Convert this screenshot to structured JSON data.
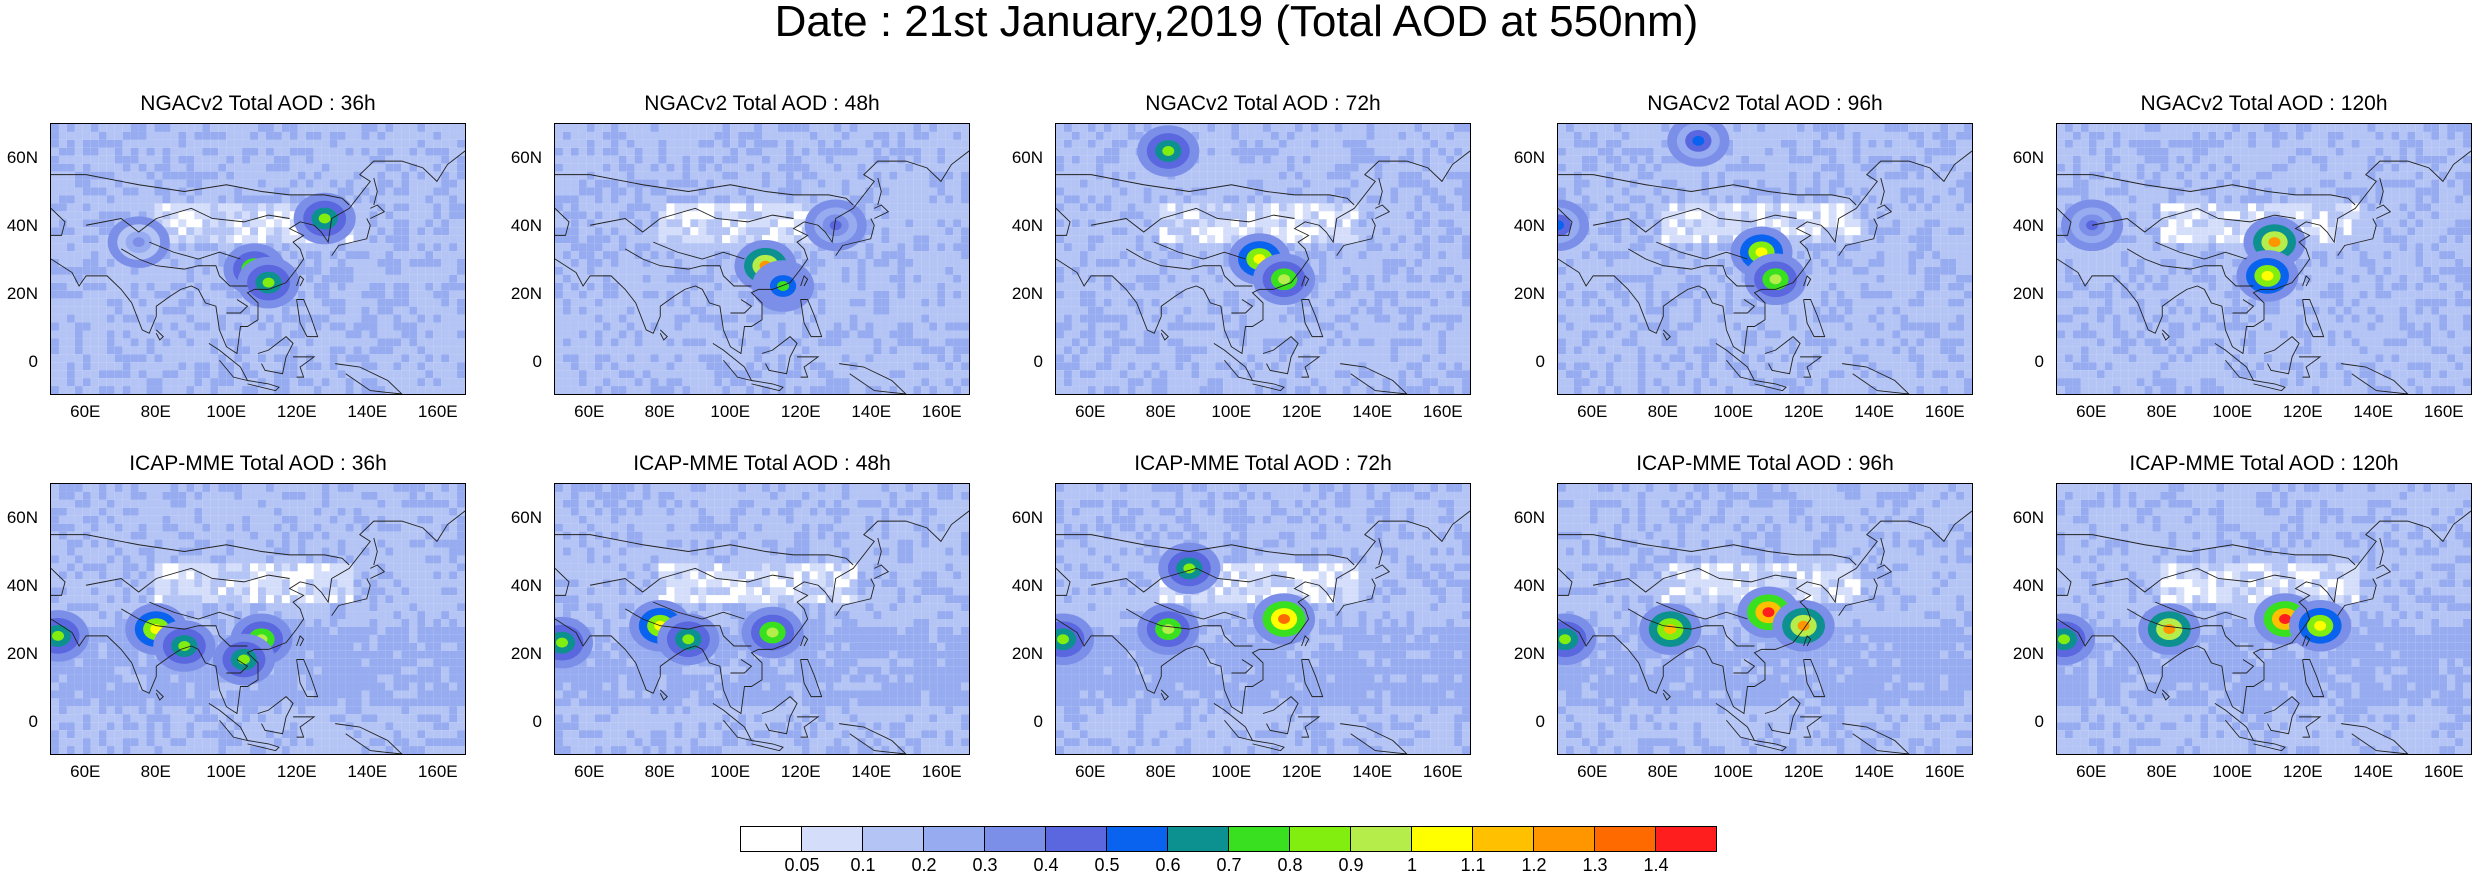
{
  "figure": {
    "title": "Date : 21st January,2019 (Total AOD at 550nm)"
  },
  "map_axes": {
    "lat_labels": [
      "60N",
      "40N",
      "20N",
      "0"
    ],
    "lon_labels": [
      "60E",
      "80E",
      "100E",
      "120E",
      "140E",
      "160E"
    ]
  },
  "panels": [
    {
      "title": "NGACv2 Total AOD : 36h",
      "model": "NGACv2",
      "lead": "36h",
      "hotspots": [
        {
          "lon": 108,
          "lat": 27,
          "level": 0.9
        },
        {
          "lon": 112,
          "lat": 23,
          "level": 0.8
        },
        {
          "lon": 128,
          "lat": 42,
          "level": 0.8
        },
        {
          "lon": 75,
          "lat": 35,
          "level": 0.3
        }
      ]
    },
    {
      "title": "NGACv2 Total AOD : 48h",
      "model": "NGACv2",
      "lead": "48h",
      "hotspots": [
        {
          "lon": 110,
          "lat": 28,
          "level": 1.2
        },
        {
          "lon": 115,
          "lat": 22,
          "level": 0.7
        },
        {
          "lon": 130,
          "lat": 40,
          "level": 0.4
        }
      ]
    },
    {
      "title": "NGACv2 Total AOD : 72h",
      "model": "NGACv2",
      "lead": "72h",
      "hotspots": [
        {
          "lon": 108,
          "lat": 30,
          "level": 1.0
        },
        {
          "lon": 115,
          "lat": 24,
          "level": 0.9
        },
        {
          "lon": 82,
          "lat": 62,
          "level": 0.8
        }
      ]
    },
    {
      "title": "NGACv2 Total AOD : 96h",
      "model": "NGACv2",
      "lead": "96h",
      "hotspots": [
        {
          "lon": 108,
          "lat": 32,
          "level": 1.0
        },
        {
          "lon": 112,
          "lat": 24,
          "level": 0.9
        },
        {
          "lon": 90,
          "lat": 65,
          "level": 0.5
        },
        {
          "lon": 50,
          "lat": 40,
          "level": 0.5
        }
      ]
    },
    {
      "title": "NGACv2 Total AOD : 120h",
      "model": "NGACv2",
      "lead": "120h",
      "hotspots": [
        {
          "lon": 112,
          "lat": 35,
          "level": 1.2
        },
        {
          "lon": 110,
          "lat": 25,
          "level": 1.0
        },
        {
          "lon": 60,
          "lat": 40,
          "level": 0.4
        }
      ]
    },
    {
      "title": "ICAP-MME Total AOD : 36h",
      "model": "ICAP-MME",
      "lead": "36h",
      "hotspots": [
        {
          "lon": 80,
          "lat": 27,
          "level": 1.0
        },
        {
          "lon": 88,
          "lat": 22,
          "level": 0.8
        },
        {
          "lon": 110,
          "lat": 24,
          "level": 0.9
        },
        {
          "lon": 105,
          "lat": 18,
          "level": 0.8
        },
        {
          "lon": 52,
          "lat": 25,
          "level": 0.8
        }
      ]
    },
    {
      "title": "ICAP-MME Total AOD : 48h",
      "model": "ICAP-MME",
      "lead": "48h",
      "hotspots": [
        {
          "lon": 80,
          "lat": 28,
          "level": 1.0
        },
        {
          "lon": 88,
          "lat": 24,
          "level": 0.8
        },
        {
          "lon": 112,
          "lat": 26,
          "level": 0.9
        },
        {
          "lon": 52,
          "lat": 23,
          "level": 0.8
        }
      ]
    },
    {
      "title": "ICAP-MME Total AOD : 72h",
      "model": "ICAP-MME",
      "lead": "72h",
      "hotspots": [
        {
          "lon": 82,
          "lat": 27,
          "level": 0.9
        },
        {
          "lon": 115,
          "lat": 30,
          "level": 1.3
        },
        {
          "lon": 52,
          "lat": 24,
          "level": 0.8
        },
        {
          "lon": 88,
          "lat": 45,
          "level": 0.8
        }
      ]
    },
    {
      "title": "ICAP-MME Total AOD : 96h",
      "model": "ICAP-MME",
      "lead": "96h",
      "hotspots": [
        {
          "lon": 82,
          "lat": 27,
          "level": 1.1
        },
        {
          "lon": 110,
          "lat": 32,
          "level": 1.4
        },
        {
          "lon": 120,
          "lat": 28,
          "level": 1.2
        },
        {
          "lon": 52,
          "lat": 24,
          "level": 0.8
        }
      ]
    },
    {
      "title": "ICAP-MME Total AOD : 120h",
      "model": "ICAP-MME",
      "lead": "120h",
      "hotspots": [
        {
          "lon": 82,
          "lat": 27,
          "level": 1.2
        },
        {
          "lon": 115,
          "lat": 30,
          "level": 1.4
        },
        {
          "lon": 125,
          "lat": 28,
          "level": 1.0
        },
        {
          "lon": 52,
          "lat": 24,
          "level": 0.8
        }
      ]
    }
  ],
  "colorbar": {
    "labels": [
      "0.05",
      "0.1",
      "0.2",
      "0.3",
      "0.4",
      "0.5",
      "0.6",
      "0.7",
      "0.8",
      "0.9",
      "1",
      "1.1",
      "1.2",
      "1.3",
      "1.4"
    ],
    "colors": [
      "#ffffff",
      "#d4defa",
      "#b4c4f5",
      "#97acf0",
      "#7c8fe8",
      "#5a67df",
      "#0a63ee",
      "#0d9090",
      "#39e01f",
      "#82ee10",
      "#b5ee4a",
      "#ffff00",
      "#ffc000",
      "#ff9600",
      "#ff6a00",
      "#ff1e1e"
    ]
  }
}
